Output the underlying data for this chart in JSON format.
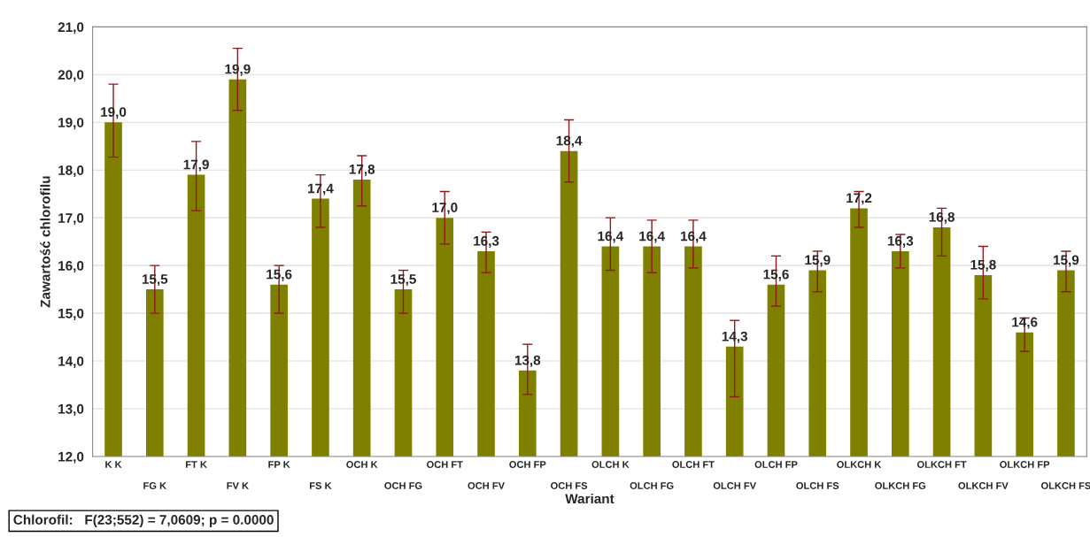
{
  "chart_data": {
    "type": "bar",
    "xlabel": "Wariant",
    "ylabel": "Zawartość chlorofilu",
    "categories": [
      "K K",
      "FG K",
      "FT K",
      "FV K",
      "FP K",
      "FS K",
      "OCH K",
      "OCH FG",
      "OCH FT",
      "OCH FV",
      "OCH FP",
      "OCH FS",
      "OLCH K",
      "OLCH FG",
      "OLCH FT",
      "OLCH FV",
      "OLCH FP",
      "OLCH FS",
      "OLKCH K",
      "OLKCH FG",
      "OLKCH FT",
      "OLKCH FV",
      "OLKCH FP",
      "OLKCH FS"
    ],
    "values": [
      19.0,
      15.5,
      17.9,
      19.9,
      15.6,
      17.4,
      17.8,
      15.5,
      17.0,
      16.3,
      13.8,
      18.4,
      16.4,
      16.4,
      16.4,
      14.3,
      15.6,
      15.9,
      17.2,
      16.3,
      16.8,
      15.8,
      14.6,
      15.9
    ],
    "value_labels": [
      "19,0",
      "15,5",
      "17,9",
      "19,9",
      "15,6",
      "17,4",
      "17,8",
      "15,5",
      "17,0",
      "16,3",
      "13,8",
      "18,4",
      "16,4",
      "16,4",
      "16,4",
      "14,3",
      "15,6",
      "15,9",
      "17,2",
      "16,3",
      "16,8",
      "15,8",
      "14,6",
      "15,9"
    ],
    "errors": [
      [
        18.27,
        19.8
      ],
      [
        15.0,
        16.0
      ],
      [
        17.15,
        18.6
      ],
      [
        19.25,
        20.55
      ],
      [
        15.0,
        16.0
      ],
      [
        16.8,
        17.9
      ],
      [
        17.25,
        18.3
      ],
      [
        15.0,
        15.9
      ],
      [
        16.45,
        17.55
      ],
      [
        15.85,
        16.7
      ],
      [
        13.3,
        14.35
      ],
      [
        17.75,
        19.05
      ],
      [
        15.9,
        17.0
      ],
      [
        15.85,
        16.95
      ],
      [
        15.95,
        16.95
      ],
      [
        13.25,
        14.85
      ],
      [
        15.15,
        16.2
      ],
      [
        15.45,
        16.3
      ],
      [
        16.8,
        17.55
      ],
      [
        15.95,
        16.65
      ],
      [
        16.2,
        17.2
      ],
      [
        15.3,
        16.4
      ],
      [
        14.2,
        14.9
      ],
      [
        15.45,
        16.3
      ]
    ],
    "color": "#808000",
    "ylim": [
      12,
      21
    ],
    "yticks": [
      {
        "value": 12,
        "label": "12,0"
      },
      {
        "value": 13,
        "label": "13,0"
      },
      {
        "value": 14,
        "label": "14,0"
      },
      {
        "value": 15,
        "label": "15,0"
      },
      {
        "value": 16,
        "label": "16,0"
      },
      {
        "value": 17,
        "label": "17,0"
      },
      {
        "value": 18,
        "label": "18,0"
      },
      {
        "value": 19,
        "label": "19,0"
      },
      {
        "value": 20,
        "label": "20,0"
      },
      {
        "value": 21,
        "label": "21,0"
      }
    ],
    "grid": "y",
    "annotations": [
      "Chlorofil:   F(23;552) = 7,0609; p = 0.0000"
    ]
  }
}
